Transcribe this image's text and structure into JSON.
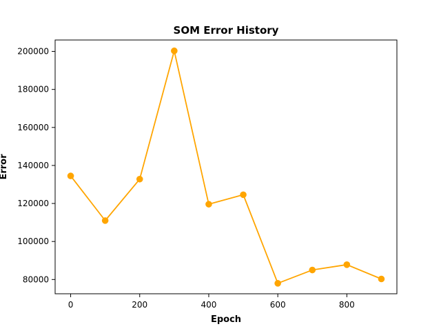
{
  "chart_data": {
    "type": "line",
    "title": "SOM Error History",
    "xlabel": "Epoch",
    "ylabel": "Error",
    "x": [
      0,
      100,
      200,
      300,
      400,
      500,
      600,
      700,
      800,
      900
    ],
    "series": [
      {
        "values": [
          134500,
          111000,
          132800,
          200300,
          119600,
          124600,
          78000,
          85000,
          87800,
          80300
        ],
        "color": "#FFA500",
        "marker": "circle"
      }
    ],
    "xlim": [
      -45,
      945
    ],
    "ylim": [
      72500,
      206000
    ],
    "xticks": [
      0,
      200,
      400,
      600,
      800
    ],
    "yticks": [
      80000,
      100000,
      120000,
      140000,
      160000,
      180000,
      200000
    ],
    "grid": false,
    "legend": false
  }
}
